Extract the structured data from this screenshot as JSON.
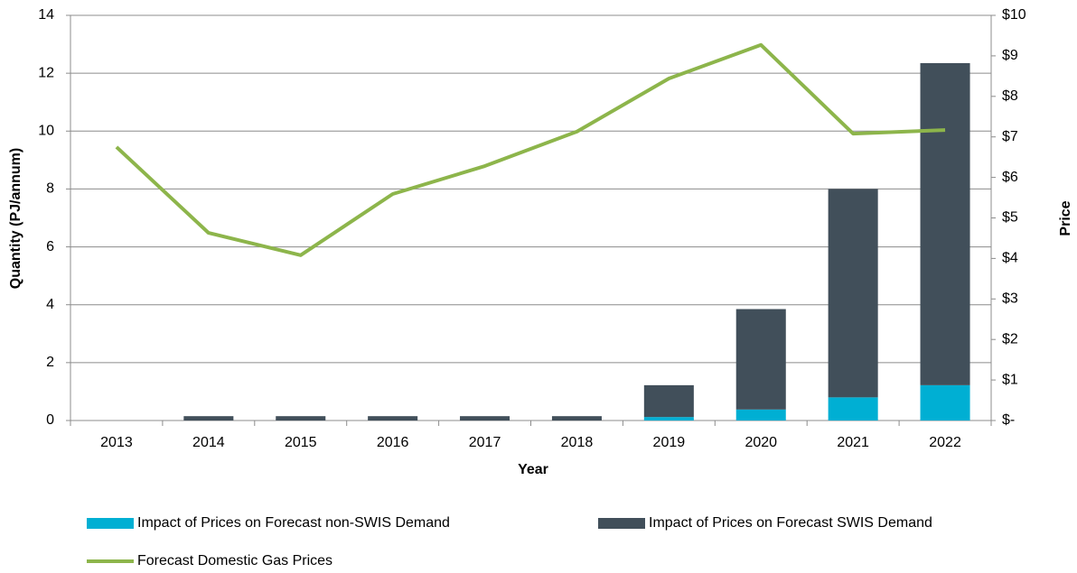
{
  "chart_data": {
    "type": "bar",
    "x_label": "Year",
    "y_label": "Quantity (PJ/annum)",
    "y2_label": "Price",
    "categories": [
      "2013",
      "2014",
      "2015",
      "2016",
      "2017",
      "2018",
      "2019",
      "2020",
      "2021",
      "2022"
    ],
    "series": [
      {
        "name": "Impact of Prices on Forecast non-SWIS Demand",
        "type": "bar",
        "stack": true,
        "color": "#00afd3",
        "values": [
          0,
          0,
          0,
          0,
          0,
          0,
          0.12,
          0.38,
          0.8,
          1.22
        ]
      },
      {
        "name": "Impact of Prices on Forecast SWIS Demand",
        "type": "bar",
        "stack": true,
        "color": "#414f5a",
        "values": [
          0,
          0.15,
          0.15,
          0.15,
          0.15,
          0.15,
          1.1,
          3.47,
          7.2,
          11.13
        ]
      },
      {
        "name": "Forecast Domestic Gas Prices",
        "type": "line",
        "axis": "y2",
        "color": "#8db54b",
        "values": [
          6.75,
          4.63,
          4.08,
          5.59,
          6.28,
          7.13,
          8.44,
          9.27,
          7.08,
          7.17
        ]
      }
    ],
    "ylim": [
      0,
      14
    ],
    "yticks": [
      0,
      2,
      4,
      6,
      8,
      10,
      12,
      14
    ],
    "y2lim": [
      0,
      10
    ],
    "y2ticks": [
      {
        "value": 0,
        "label": "$-"
      },
      {
        "value": 1,
        "label": "$1"
      },
      {
        "value": 2,
        "label": "$2"
      },
      {
        "value": 3,
        "label": "$3"
      },
      {
        "value": 4,
        "label": "$4"
      },
      {
        "value": 5,
        "label": "$5"
      },
      {
        "value": 6,
        "label": "$6"
      },
      {
        "value": 7,
        "label": "$7"
      },
      {
        "value": 8,
        "label": "$8"
      },
      {
        "value": 9,
        "label": "$9"
      },
      {
        "value": 10,
        "label": "$10"
      }
    ],
    "grid": true
  }
}
